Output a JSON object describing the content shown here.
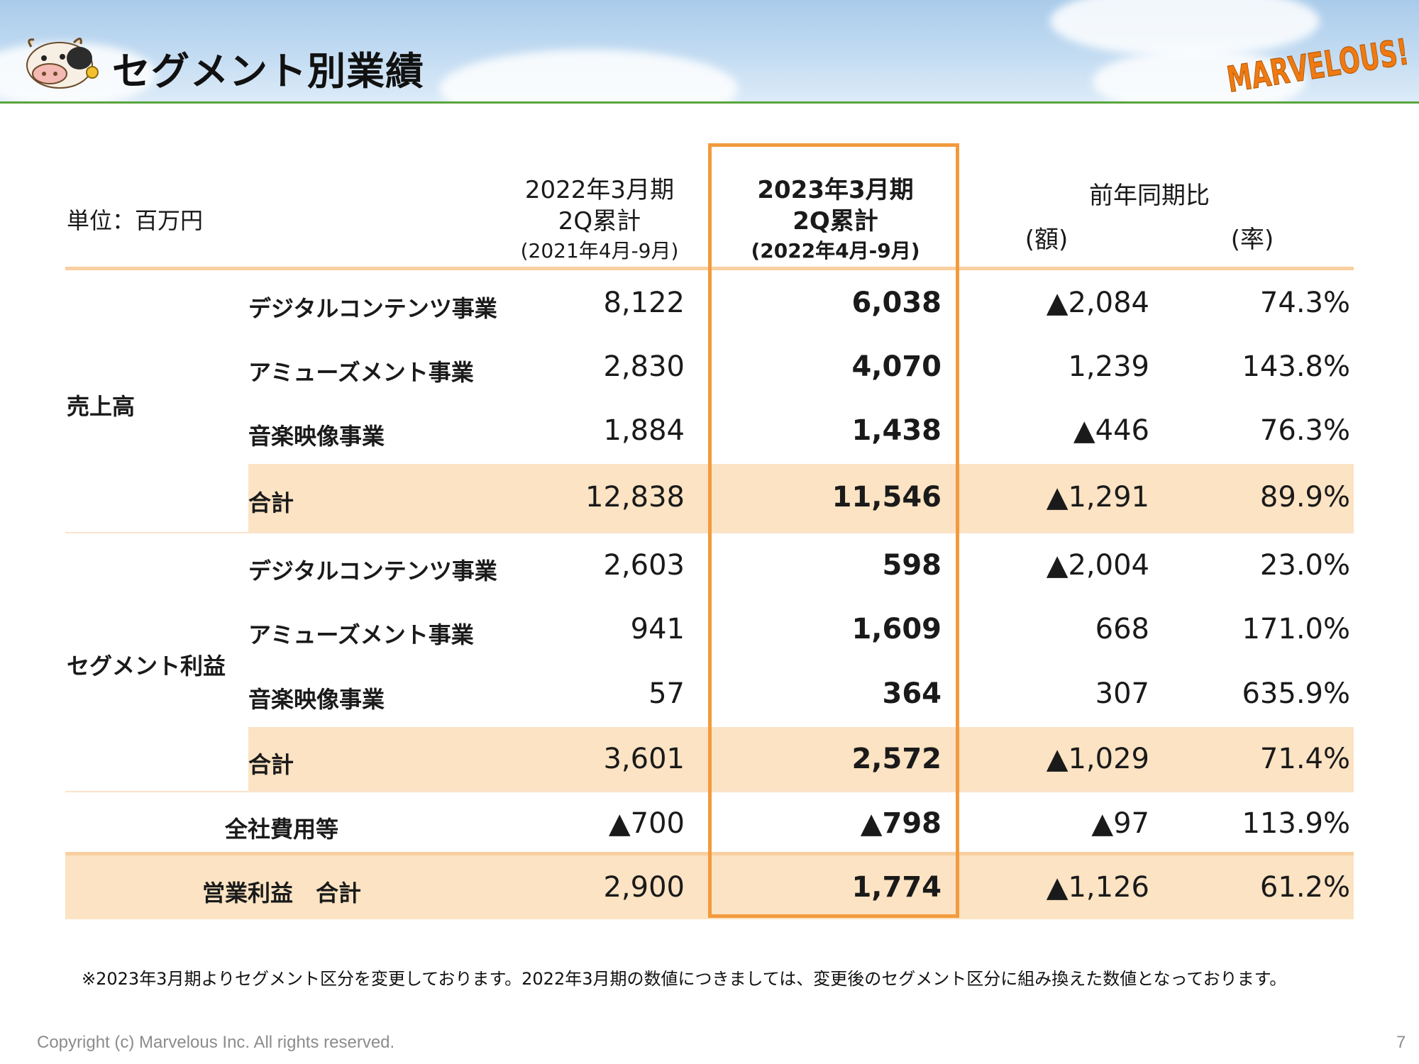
{
  "page": {
    "title": "セグメント別業績",
    "logo_text": "MARVELOUS!",
    "unit_label": "単位：百万円",
    "footnote": "※2023年3月期よりセグメント区分を変更しております。2022年3月期の数値につきましては、変更後のセグメント区分に組み換えた数値となっております。",
    "copyright": "Copyright (c) Marvelous Inc. All rights reserved.",
    "page_number": "7"
  },
  "columns": {
    "prev": {
      "line1": "2022年3月期",
      "line2": "2Q累計",
      "line3": "(2021年4月-9月)"
    },
    "curr": {
      "line1": "2023年3月期",
      "line2": "2Q累計",
      "line3": "(2022年4月-9月)"
    },
    "yoy": {
      "title": "前年同期比",
      "amount": "(額)",
      "rate": "(率)"
    }
  },
  "groups": {
    "sales": "売上高",
    "segment_profit": "セグメント利益"
  },
  "rows": [
    {
      "label": "デジタルコンテンツ事業",
      "prev": "8,122",
      "curr": "6,038",
      "diff": "▲2,084",
      "rate": "74.3%"
    },
    {
      "label": "アミューズメント事業",
      "prev": "2,830",
      "curr": "4,070",
      "diff": "1,239",
      "rate": "143.8%"
    },
    {
      "label": "音楽映像事業",
      "prev": "1,884",
      "curr": "1,438",
      "diff": "▲446",
      "rate": "76.3%"
    },
    {
      "label": "合計",
      "prev": "12,838",
      "curr": "11,546",
      "diff": "▲1,291",
      "rate": "89.9%"
    },
    {
      "label": "デジタルコンテンツ事業",
      "prev": "2,603",
      "curr": "598",
      "diff": "▲2,004",
      "rate": "23.0%"
    },
    {
      "label": "アミューズメント事業",
      "prev": "941",
      "curr": "1,609",
      "diff": "668",
      "rate": "171.0%"
    },
    {
      "label": "音楽映像事業",
      "prev": "57",
      "curr": "364",
      "diff": "307",
      "rate": "635.9%"
    },
    {
      "label": "合計",
      "prev": "3,601",
      "curr": "2,572",
      "diff": "▲1,029",
      "rate": "71.4%"
    },
    {
      "label": "全社費用等",
      "prev": "▲700",
      "curr": "▲798",
      "diff": "▲97",
      "rate": "113.9%"
    },
    {
      "label": "営業利益　合計",
      "prev": "2,900",
      "curr": "1,774",
      "diff": "▲1,126",
      "rate": "61.2%"
    }
  ],
  "colors": {
    "accent_orange": "#f39a3e",
    "band": "#fbe3c3",
    "header_line": "#5aa53d"
  }
}
